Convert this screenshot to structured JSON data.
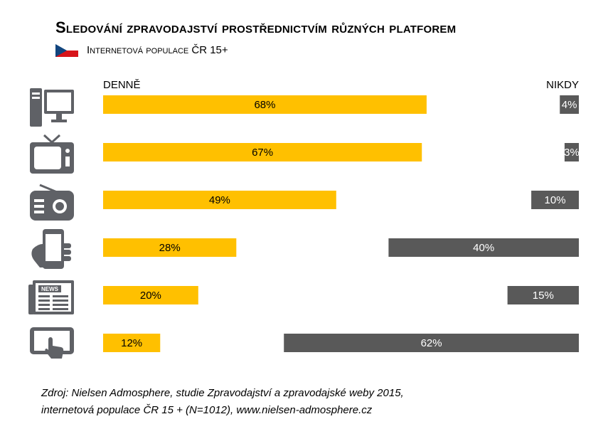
{
  "title": "Sledování zpravodajství prostřednictvím různých platforem",
  "subtitle": "Internetová populace ČR 15+",
  "source_line1": "Zdroj: Nielsen Admosphere, studie Zpravodajství a zpravodajské weby 2015,",
  "source_line2": "internetová populace ČR 15 + (N=1012), www.nielsen-admosphere.cz",
  "colors": {
    "denne": "#FFC000",
    "nikdy": "#595959",
    "icon": "#5f6166"
  },
  "chart_data": {
    "type": "bar",
    "categories": [
      "computer-icon",
      "tv-icon",
      "radio-icon",
      "smartphone-icon",
      "newspaper-icon",
      "tablet-icon"
    ],
    "series": [
      {
        "name": "DENNĚ",
        "values": [
          68,
          67,
          49,
          28,
          20,
          12
        ],
        "labels": [
          "68%",
          "67%",
          "49%",
          "28%",
          "20%",
          "12%"
        ],
        "color": "#FFC000",
        "align": "left"
      },
      {
        "name": "NIKDY",
        "values": [
          4,
          3,
          10,
          40,
          15,
          62
        ],
        "labels": [
          "4%",
          "3%",
          "10%",
          "40%",
          "15%",
          "62%"
        ],
        "color": "#595959",
        "align": "right"
      }
    ],
    "xlim": [
      0,
      100
    ],
    "grid": false
  }
}
